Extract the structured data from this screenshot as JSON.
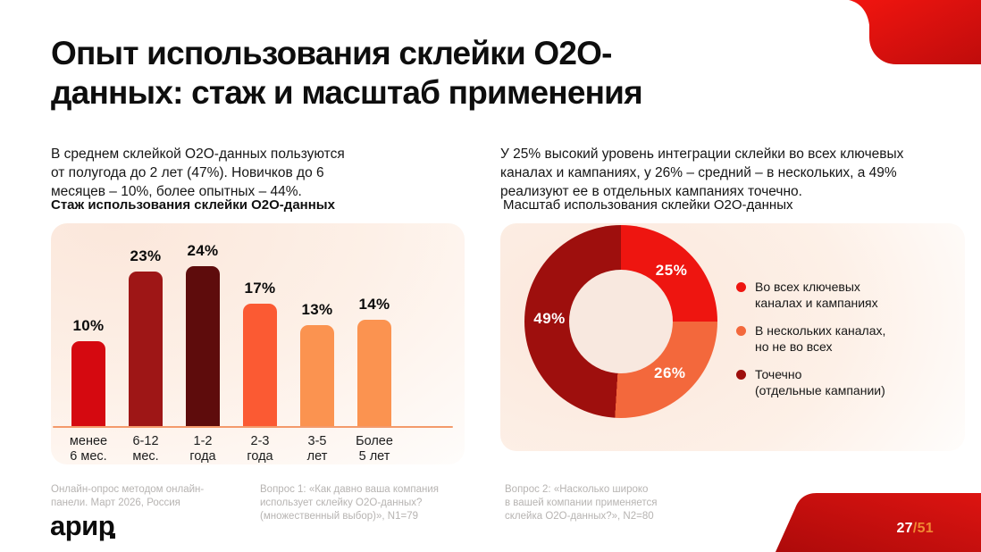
{
  "slide": {
    "title": "Опыт использования склейки O2O-\nданных: стаж и масштаб применения",
    "intro_left": "В среднем склейкой O2O-данных пользуются\nот полугода до 2 лет (47%). Новичков до 6\nмесяцев – 10%, более опытных – 44%.",
    "intro_right": "У 25% высокий уровень интеграции склейки во всех ключевых\nканалах и кампаниях, у 26% – средний – в нескольких, а 49%\nреализуют ее в отдельных кампаниях точечно.",
    "subtitle_left": "Стаж использования склейки O2O-данных",
    "subtitle_right": "Масштаб использования склейки O2O-данных"
  },
  "chart_data": [
    {
      "type": "bar",
      "title": "Стаж использования склейки O2O-данных",
      "categories": [
        "менее\n6 мес.",
        "6-12\nмес.",
        "1-2\nгода",
        "2-3\nгода",
        "3-5\nлет",
        "Более\n5 лет"
      ],
      "values": [
        10,
        23,
        24,
        17,
        13,
        14
      ],
      "unit": "%",
      "bar_colors": [
        "#d50910",
        "#9e1616",
        "#5e0c0c",
        "#fb5a33",
        "#fb9350",
        "#fb9350"
      ],
      "ylim": [
        0,
        30
      ],
      "grid": false,
      "baseline_color": "#f49a6b"
    },
    {
      "type": "pie",
      "donut": true,
      "title": "Масштаб использования склейки O2O-данных",
      "legend_position": "right",
      "slices": [
        {
          "label": "Во всех ключевых\nканалах и кампаниях",
          "value": 25,
          "display": "25%",
          "color": "#ee1510"
        },
        {
          "label": "В нескольких каналах,\nно не во всех",
          "value": 26,
          "display": "26%",
          "color": "#f3683c"
        },
        {
          "label": "Точечно\n(отдельные кампании)",
          "value": 49,
          "display": "49%",
          "color": "#9e0f0d"
        }
      ]
    }
  ],
  "footnotes": [
    "Онлайн-опрос методом онлайн-\nпанели. Март 2026, Россия",
    "Вопрос 1: «Как давно ваша компания\nиспользует склейку O2O-данных?\n(множественный выбор)», N1=79",
    "Вопрос 2: «Насколько широко\nв вашей компании применяется\nсклейка O2O-данных?», N2=80"
  ],
  "logo": {
    "text": "арир"
  },
  "pagination": {
    "current": "27",
    "total": "/51"
  },
  "colors": {
    "corner_red_light": "#f2150f",
    "corner_red_dark": "#bf0c0c",
    "page_total_orange": "#f08a33",
    "panel_peach": "#fbe7db"
  }
}
